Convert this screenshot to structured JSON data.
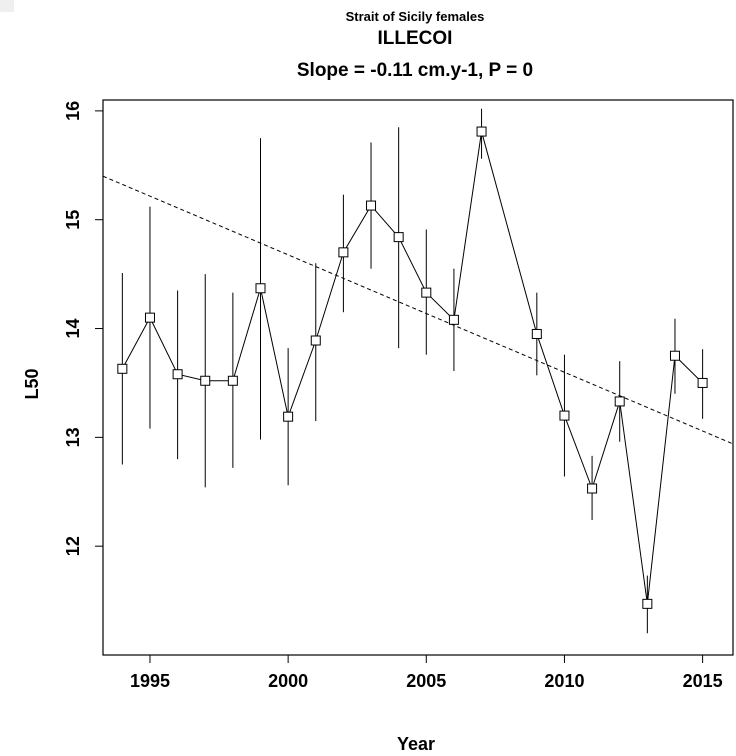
{
  "chart_data": {
    "type": "line",
    "supertitle": "Strait of Sicily females",
    "title": "ILLECOI",
    "subtitle": "Slope = -0.11 cm.y-1, P = 0",
    "xlabel": "Year",
    "ylabel": "L50",
    "xlim": [
      1993.3,
      2016.1
    ],
    "ylim": [
      11.0,
      16.1
    ],
    "xticks": [
      1995,
      2000,
      2005,
      2010,
      2015
    ],
    "yticks": [
      12,
      13,
      14,
      15,
      16
    ],
    "grid": false,
    "series": [
      {
        "x": [
          1994,
          1995,
          1996,
          1997,
          1998,
          1999,
          2000,
          2001,
          2002,
          2003,
          2004,
          2005,
          2006,
          2007,
          2009,
          2010,
          2011,
          2012,
          2013,
          2014,
          2015
        ],
        "y": [
          13.63,
          14.1,
          13.58,
          13.52,
          13.52,
          14.37,
          13.19,
          13.89,
          14.7,
          15.13,
          14.84,
          14.33,
          14.08,
          15.81,
          13.95,
          13.2,
          12.53,
          13.33,
          11.47,
          13.75,
          13.5
        ],
        "lower": [
          12.75,
          13.08,
          12.8,
          12.54,
          12.72,
          12.98,
          12.56,
          13.15,
          14.15,
          14.55,
          13.82,
          13.76,
          13.61,
          15.56,
          13.57,
          12.64,
          12.24,
          12.96,
          11.2,
          13.4,
          13.17
        ],
        "upper": [
          14.51,
          15.12,
          14.35,
          14.5,
          14.33,
          15.75,
          13.82,
          14.6,
          15.23,
          15.71,
          15.85,
          14.91,
          14.55,
          16.02,
          14.33,
          13.76,
          12.83,
          13.7,
          11.73,
          14.09,
          13.81
        ]
      }
    ],
    "trend": {
      "slope": -0.11,
      "x": [
        1993.3,
        2016.1
      ],
      "y": [
        15.4,
        12.94
      ],
      "style": "dashed"
    }
  }
}
